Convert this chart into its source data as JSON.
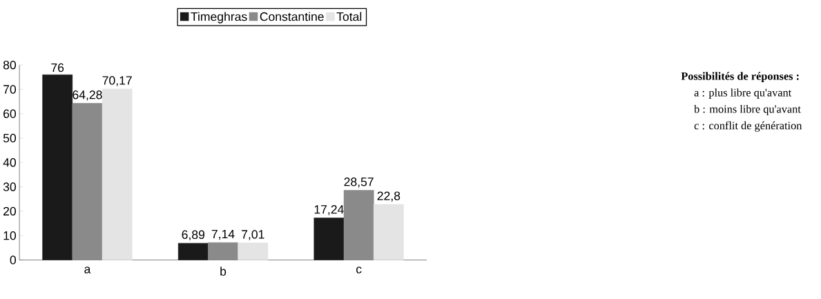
{
  "chart_data": {
    "type": "bar",
    "categories": [
      "a",
      "b",
      "c"
    ],
    "series": [
      {
        "name": "Timeghras",
        "color": "#1a1a1a",
        "values": [
          76,
          6.89,
          17.24
        ],
        "value_labels": [
          "76",
          "6,89",
          "17,24"
        ]
      },
      {
        "name": "Constantine",
        "color": "#8a8a8a",
        "values": [
          64.28,
          7.14,
          28.57
        ],
        "value_labels": [
          "64,28",
          "7,14",
          "28,57"
        ]
      },
      {
        "name": "Total",
        "color": "#e4e4e4",
        "values": [
          70.17,
          7.01,
          22.8
        ],
        "value_labels": [
          "70,17",
          "7,01",
          "22,8"
        ]
      }
    ],
    "ylim": [
      0,
      80
    ],
    "yticks": [
      0,
      10,
      20,
      30,
      40,
      50,
      60,
      70,
      80
    ],
    "grid": false,
    "legend": "top",
    "annotations": [
      "**Possibilités de réponses :**",
      "a : plus libre qu'avant",
      "b : moins libre qu'avant",
      "c : conflit de génération"
    ]
  }
}
